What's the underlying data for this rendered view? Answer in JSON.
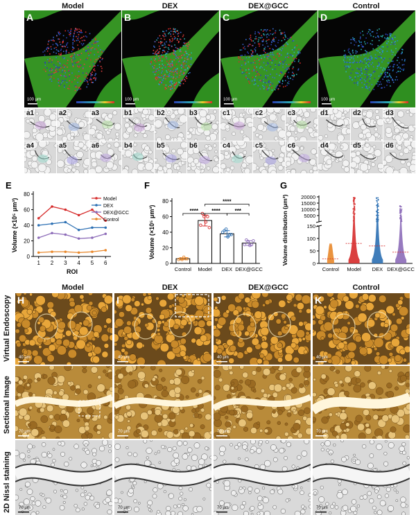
{
  "columns": [
    "Model",
    "DEX",
    "DEX@GCC",
    "Control"
  ],
  "row_labels": [
    "Virtual Endoscopy",
    "Sectional Image",
    "2D Nissl staining"
  ],
  "panel_letters_top": [
    "A",
    "B",
    "C",
    "D"
  ],
  "panel_letters_bottom": [
    "H",
    "I",
    "J",
    "K"
  ],
  "sub_labels": [
    [
      "a1",
      "a2",
      "a3",
      "a4",
      "a5",
      "a6"
    ],
    [
      "b1",
      "b2",
      "b3",
      "b4",
      "b5",
      "b6"
    ],
    [
      "c1",
      "c2",
      "c3",
      "c4",
      "c5",
      "c6"
    ],
    [
      "d1",
      "d2",
      "d3",
      "d4",
      "d5",
      "d6"
    ]
  ],
  "scale_labels": {
    "top": "100 μm",
    "bottom": "40 μm",
    "sectional": "70 μm",
    "nissl": "70 μm"
  },
  "colors": {
    "vessel": "#3fae2a",
    "model": "#d62b2b",
    "dex": "#2b6fb3",
    "dexgcc": "#8c6bb8",
    "control": "#e8872a"
  },
  "chart_data": [
    {
      "type": "line",
      "letter": "E",
      "xlabel": "ROI",
      "ylabel": "Volume (×10⁵ μm³)",
      "x": [
        1,
        2,
        3,
        4,
        5,
        6
      ],
      "ylim": [
        0,
        80
      ],
      "yticks": [
        0,
        20,
        40,
        60,
        80
      ],
      "legend_position": "top-right",
      "series": [
        {
          "name": "Model",
          "values": [
            49,
            64,
            60,
            53,
            60,
            46
          ]
        },
        {
          "name": "DEX",
          "values": [
            40,
            42,
            44,
            34,
            37,
            37
          ]
        },
        {
          "name": "DEX@GCC",
          "values": [
            24,
            30,
            28,
            23,
            24,
            29
          ]
        },
        {
          "name": "Control",
          "values": [
            5,
            6,
            6,
            5,
            6,
            8
          ]
        }
      ]
    },
    {
      "type": "bar",
      "letter": "F",
      "ylabel": "Volume (×10⁵ μm³)",
      "categories": [
        "Control",
        "Model",
        "DEX",
        "DEX@GCC"
      ],
      "values": [
        6,
        55,
        38,
        26
      ],
      "errors": [
        1.2,
        7,
        4,
        3
      ],
      "points": [
        [
          5,
          6,
          5,
          8,
          6,
          6
        ],
        [
          49,
          64,
          60,
          53,
          60,
          46
        ],
        [
          40,
          42,
          44,
          34,
          37,
          37
        ],
        [
          24,
          30,
          28,
          23,
          24,
          29
        ]
      ],
      "ylim": [
        0,
        80
      ],
      "yticks": [
        0,
        20,
        40,
        60,
        80
      ],
      "significance": [
        {
          "from": 0,
          "to": 1,
          "label": "****"
        },
        {
          "from": 1,
          "to": 2,
          "label": "****"
        },
        {
          "from": 1,
          "to": 3,
          "label": "****"
        },
        {
          "from": 2,
          "to": 3,
          "label": "***"
        }
      ]
    },
    {
      "type": "scatter",
      "letter": "G",
      "ylabel": "Volume distribution (μm³)",
      "categories": [
        "Control",
        "Model",
        "DEX",
        "DEX@GCC"
      ],
      "ytick_labels_upper": [
        "5000",
        "10000",
        "15000",
        "20000"
      ],
      "ytick_labels_lower": [
        "0",
        "50",
        "100",
        "150"
      ],
      "yticks_upper": [
        5000,
        10000,
        15000,
        20000
      ],
      "yticks_lower": [
        0,
        50,
        100,
        150
      ],
      "max_values": [
        75,
        20000,
        20000,
        13000
      ],
      "mean_values": [
        18,
        80,
        70,
        45
      ]
    }
  ]
}
